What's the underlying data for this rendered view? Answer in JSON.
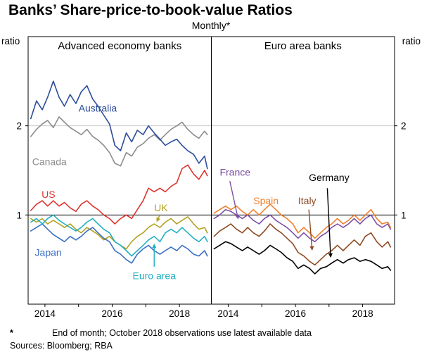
{
  "title": "Banks’ Share-price-to-book-value Ratios",
  "subtitle": "Monthly*",
  "footnote": {
    "marker": "*",
    "text": "End of month; October 2018 observations use latest available data"
  },
  "sources": "Sources: Bloomberg; RBA",
  "chart_data": {
    "type": "line",
    "x_range": [
      2013.5,
      2018.95
    ],
    "ylim": [
      0,
      3
    ],
    "y_ticks": [
      1,
      2
    ],
    "y_unit": "ratio",
    "reference_line": 1,
    "gridlines": [
      2
    ],
    "x_ticks": [
      2014,
      2015,
      2016,
      2017,
      2018
    ],
    "x_tick_labels": [
      {
        "value": 2014,
        "label": "2014"
      },
      {
        "value": 2016,
        "label": "2016"
      },
      {
        "value": 2018,
        "label": "2018"
      }
    ],
    "x": [
      2013.58,
      2013.75,
      2013.92,
      2014.08,
      2014.25,
      2014.42,
      2014.58,
      2014.75,
      2014.92,
      2015.08,
      2015.25,
      2015.42,
      2015.58,
      2015.75,
      2015.92,
      2016.08,
      2016.25,
      2016.42,
      2016.58,
      2016.75,
      2016.92,
      2017.08,
      2017.25,
      2017.42,
      2017.58,
      2017.75,
      2017.92,
      2018.08,
      2018.25,
      2018.42,
      2018.58,
      2018.75,
      2018.83
    ],
    "panels": [
      {
        "title": "Advanced economy banks",
        "series": [
          {
            "name": "Canada",
            "color": "#8c8c8c",
            "values": [
              1.88,
              1.96,
              2.02,
              2.06,
              1.98,
              2.1,
              2.04,
              1.98,
              1.94,
              1.9,
              1.96,
              1.88,
              1.84,
              1.78,
              1.7,
              1.58,
              1.55,
              1.7,
              1.66,
              1.76,
              1.8,
              1.86,
              1.9,
              1.84,
              1.9,
              1.96,
              2.0,
              2.04,
              1.96,
              1.9,
              1.86,
              1.94,
              1.9
            ],
            "label": {
              "text": "Canada",
              "x": 2013.62,
              "y": 1.6,
              "anchor": "start"
            }
          },
          {
            "name": "Australia",
            "color": "#2b4d9b",
            "values": [
              2.08,
              2.28,
              2.18,
              2.32,
              2.5,
              2.32,
              2.22,
              2.35,
              2.25,
              2.38,
              2.45,
              2.3,
              2.22,
              2.12,
              2.02,
              1.78,
              1.72,
              1.92,
              1.82,
              1.95,
              1.9,
              2.0,
              1.92,
              1.85,
              1.78,
              1.82,
              1.85,
              1.78,
              1.72,
              1.68,
              1.58,
              1.66,
              1.52
            ],
            "label": {
              "text": "Australia",
              "x": 2015.0,
              "y": 2.2,
              "anchor": "start"
            }
          },
          {
            "name": "US",
            "color": "#e0342f",
            "values": [
              1.05,
              1.12,
              1.16,
              1.1,
              1.16,
              1.1,
              1.14,
              1.08,
              1.04,
              1.12,
              1.16,
              1.1,
              1.06,
              1.0,
              0.96,
              0.9,
              0.96,
              1.0,
              0.96,
              1.06,
              1.16,
              1.3,
              1.26,
              1.3,
              1.26,
              1.32,
              1.36,
              1.52,
              1.56,
              1.46,
              1.4,
              1.5,
              1.44
            ],
            "label": {
              "text": "US",
              "x": 2013.9,
              "y": 1.23,
              "anchor": "start"
            }
          },
          {
            "name": "UK",
            "color": "#b3a11f",
            "values": [
              0.96,
              0.92,
              0.96,
              0.9,
              0.94,
              0.9,
              0.86,
              0.9,
              0.84,
              0.8,
              0.86,
              0.82,
              0.78,
              0.72,
              0.76,
              0.7,
              0.66,
              0.62,
              0.7,
              0.76,
              0.8,
              0.86,
              0.9,
              0.86,
              0.92,
              0.96,
              0.9,
              0.94,
              0.98,
              0.9,
              0.84,
              0.86,
              0.8
            ],
            "label": {
              "text": "UK",
              "x": 2017.45,
              "y": 1.08,
              "anchor": "middle"
            },
            "arrow": {
              "from": [
                2017.42,
                1.0
              ],
              "to": [
                2017.32,
                0.92
              ]
            }
          },
          {
            "name": "Japan",
            "color": "#3a6fc4",
            "values": [
              0.82,
              0.86,
              0.9,
              0.84,
              0.78,
              0.74,
              0.7,
              0.76,
              0.72,
              0.76,
              0.82,
              0.86,
              0.8,
              0.74,
              0.7,
              0.6,
              0.56,
              0.5,
              0.46,
              0.56,
              0.62,
              0.66,
              0.6,
              0.56,
              0.6,
              0.64,
              0.6,
              0.66,
              0.62,
              0.56,
              0.54,
              0.6,
              0.54
            ],
            "label": {
              "text": "Japan",
              "x": 2013.7,
              "y": 0.58,
              "anchor": "start"
            }
          },
          {
            "name": "Euro area",
            "color": "#23b0c3",
            "values": [
              0.92,
              0.96,
              0.9,
              0.96,
              1.0,
              0.94,
              0.9,
              0.86,
              0.82,
              0.86,
              0.92,
              0.96,
              0.9,
              0.84,
              0.8,
              0.7,
              0.66,
              0.6,
              0.54,
              0.6,
              0.66,
              0.72,
              0.76,
              0.7,
              0.8,
              0.84,
              0.8,
              0.86,
              0.8,
              0.74,
              0.7,
              0.76,
              0.7
            ],
            "label": {
              "text": "Euro area",
              "x": 2017.25,
              "y": 0.32,
              "anchor": "middle"
            },
            "arrow": {
              "from": [
                2017.25,
                0.42
              ],
              "to": [
                2017.25,
                0.68
              ]
            }
          }
        ]
      },
      {
        "title": "Euro area banks",
        "series": [
          {
            "name": "France",
            "color": "#7d4fa6",
            "values": [
              0.96,
              1.0,
              1.06,
              1.04,
              1.0,
              0.96,
              1.0,
              0.94,
              0.9,
              0.96,
              1.0,
              0.94,
              0.9,
              0.86,
              0.8,
              0.74,
              0.8,
              0.74,
              0.7,
              0.76,
              0.8,
              0.86,
              0.9,
              0.86,
              0.9,
              0.96,
              0.9,
              0.96,
              1.0,
              0.9,
              0.86,
              0.9,
              0.84
            ],
            "label": {
              "text": "France",
              "x": 2013.75,
              "y": 1.48,
              "anchor": "start"
            },
            "arrow": {
              "from": [
                2014.05,
                1.38
              ],
              "to": [
                2014.3,
                0.95
              ]
            }
          },
          {
            "name": "Spain",
            "color": "#f07f2d",
            "values": [
              1.02,
              1.06,
              1.1,
              1.06,
              1.1,
              1.04,
              1.0,
              1.06,
              1.0,
              1.06,
              1.12,
              1.06,
              1.0,
              0.96,
              0.9,
              0.8,
              0.86,
              0.8,
              0.74,
              0.8,
              0.86,
              0.9,
              0.96,
              0.9,
              0.94,
              1.0,
              0.94,
              1.0,
              1.06,
              0.96,
              0.9,
              0.92,
              0.86
            ],
            "label": {
              "text": "Spain",
              "x": 2014.75,
              "y": 1.16,
              "anchor": "start"
            }
          },
          {
            "name": "Italy",
            "color": "#8f4a22",
            "values": [
              0.76,
              0.82,
              0.86,
              0.9,
              0.84,
              0.8,
              0.86,
              0.8,
              0.76,
              0.82,
              0.9,
              0.84,
              0.8,
              0.74,
              0.68,
              0.58,
              0.54,
              0.48,
              0.44,
              0.5,
              0.56,
              0.6,
              0.66,
              0.6,
              0.66,
              0.72,
              0.66,
              0.76,
              0.8,
              0.7,
              0.64,
              0.7,
              0.64
            ],
            "label": {
              "text": "Italy",
              "x": 2016.35,
              "y": 1.16,
              "anchor": "middle"
            },
            "arrow": {
              "from": [
                2016.4,
                1.06
              ],
              "to": [
                2016.5,
                0.6
              ]
            }
          },
          {
            "name": "Germany",
            "color": "#000000",
            "values": [
              0.62,
              0.66,
              0.7,
              0.68,
              0.64,
              0.6,
              0.64,
              0.6,
              0.56,
              0.6,
              0.66,
              0.62,
              0.58,
              0.52,
              0.48,
              0.4,
              0.44,
              0.4,
              0.34,
              0.4,
              0.42,
              0.46,
              0.5,
              0.46,
              0.5,
              0.52,
              0.48,
              0.5,
              0.48,
              0.44,
              0.4,
              0.42,
              0.38
            ],
            "label": {
              "text": "Germany",
              "x": 2016.4,
              "y": 1.42,
              "anchor": "start"
            },
            "arrow": {
              "from": [
                2016.95,
                1.3
              ],
              "to": [
                2017.05,
                0.52
              ]
            }
          }
        ]
      }
    ]
  }
}
